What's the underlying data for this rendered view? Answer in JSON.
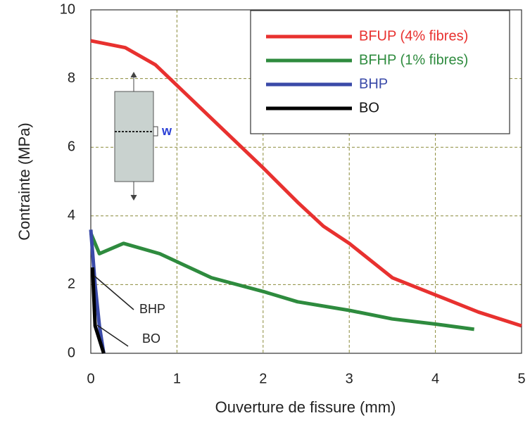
{
  "chart_data": {
    "type": "line",
    "xlabel": "Ouverture de fissure (mm)",
    "ylabel": "Contrainte (MPa)",
    "xlim": [
      0,
      5
    ],
    "ylim": [
      0,
      10
    ],
    "xticks": [
      0,
      1,
      2,
      3,
      4,
      5
    ],
    "yticks": [
      0,
      2,
      4,
      6,
      8,
      10
    ],
    "grid": true,
    "legend": "upper right",
    "series": [
      {
        "name": "BFUP (4% fibres)",
        "color": "#e8312f",
        "x": [
          0,
          0.4,
          0.75,
          1,
          1.5,
          2,
          2.4,
          2.7,
          3,
          3.5,
          4,
          4.5,
          5
        ],
        "values": [
          9.1,
          8.9,
          8.4,
          7.8,
          6.6,
          5.4,
          4.4,
          3.7,
          3.2,
          2.2,
          1.7,
          1.2,
          0.8
        ]
      },
      {
        "name": "BFHP (1% fibres)",
        "color": "#2e8b3e",
        "x": [
          0,
          0.1,
          0.38,
          0.8,
          1.4,
          2,
          2.4,
          3,
          3.5,
          4,
          4.45
        ],
        "values": [
          3.5,
          2.9,
          3.2,
          2.9,
          2.2,
          1.8,
          1.5,
          1.25,
          1.0,
          0.85,
          0.7
        ]
      },
      {
        "name": "BHP",
        "color": "#3a4aa8",
        "x": [
          0,
          0.05,
          0.1,
          0.15
        ],
        "values": [
          3.6,
          2.0,
          0.8,
          0
        ]
      },
      {
        "name": "BO",
        "color": "#000000",
        "x": [
          0.02,
          0.05,
          0.15
        ],
        "values": [
          2.5,
          0.8,
          0
        ]
      }
    ],
    "annotations": [
      {
        "text": "BHP"
      },
      {
        "text": "BO"
      },
      {
        "text": "w"
      }
    ]
  }
}
